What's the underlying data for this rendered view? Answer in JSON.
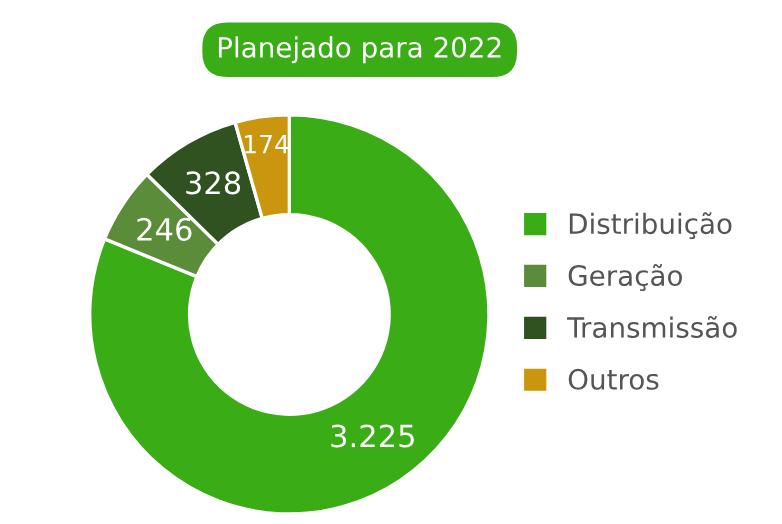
{
  "chart_data": {
    "type": "donut",
    "title": "Planejado para 2022",
    "categories": [
      "Distribuição",
      "Geração",
      "Transmissão",
      "Outros"
    ],
    "values": [
      3225,
      246,
      328,
      174
    ],
    "value_labels": [
      "3.225",
      "246",
      "328",
      "174"
    ],
    "colors": [
      "#3aac16",
      "#5b8c3a",
      "#2f5220",
      "#c9960e"
    ],
    "legend": "right"
  }
}
